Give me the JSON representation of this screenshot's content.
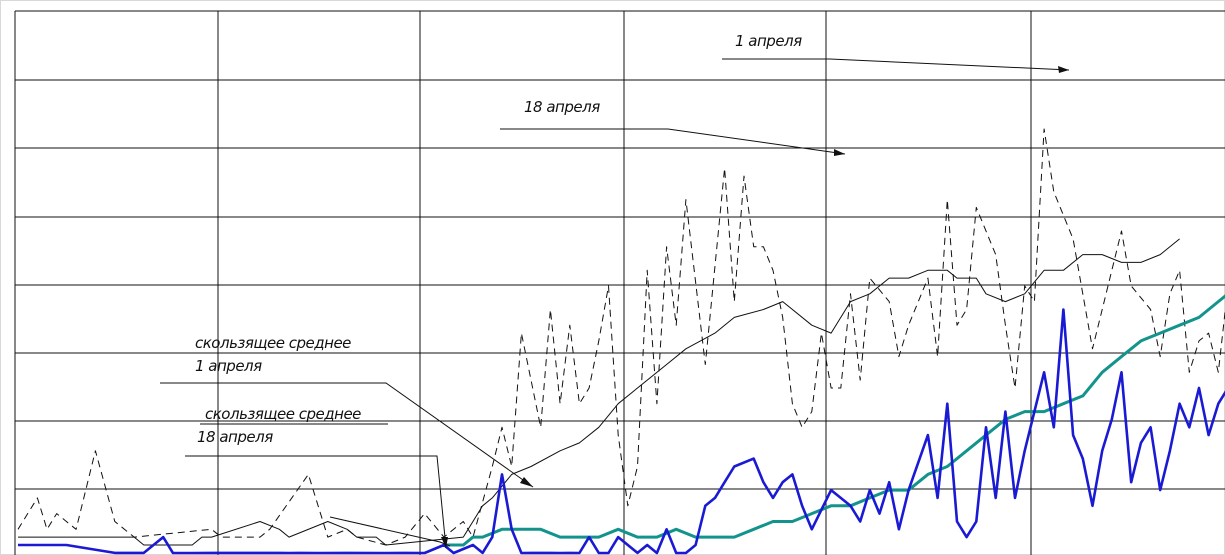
{
  "chart_data": {
    "type": "line",
    "grid": true,
    "x_divisions": 6,
    "y_divisions": 8,
    "xlim": [
      0,
      120
    ],
    "ylim": [
      0,
      80
    ],
    "colors": {
      "dashed": "#111111",
      "sma_black": "#111111",
      "blue": "#1a1ad4",
      "teal": "#12948c",
      "grid": "#111111"
    },
    "series": [
      {
        "id": "dashed",
        "style": "dashed",
        "points": [
          [
            0,
            2
          ],
          [
            2,
            6
          ],
          [
            3,
            2
          ],
          [
            4,
            4
          ],
          [
            5,
            3
          ],
          [
            6,
            2
          ],
          [
            8,
            12
          ],
          [
            10,
            3
          ],
          [
            12,
            1
          ],
          [
            20,
            2
          ],
          [
            21,
            1
          ],
          [
            25,
            1
          ],
          [
            26,
            2
          ],
          [
            30,
            9
          ],
          [
            32,
            1
          ],
          [
            34,
            2
          ],
          [
            35,
            1
          ],
          [
            38,
            0
          ],
          [
            40,
            1
          ],
          [
            42,
            4
          ],
          [
            44,
            1
          ],
          [
            46,
            3
          ],
          [
            47,
            1
          ],
          [
            49,
            10
          ],
          [
            50,
            15
          ],
          [
            51,
            10
          ],
          [
            52,
            27
          ],
          [
            54,
            15
          ],
          [
            55,
            30
          ],
          [
            56,
            18
          ],
          [
            57,
            28
          ],
          [
            58,
            18
          ],
          [
            59,
            20
          ],
          [
            60,
            26
          ],
          [
            61,
            33
          ],
          [
            62,
            14
          ],
          [
            63,
            5
          ],
          [
            64,
            10
          ],
          [
            65,
            35
          ],
          [
            66,
            18
          ],
          [
            67,
            38
          ],
          [
            68,
            28
          ],
          [
            69,
            44
          ],
          [
            71,
            23
          ],
          [
            73,
            48
          ],
          [
            74,
            31
          ],
          [
            75,
            47
          ],
          [
            76,
            38
          ],
          [
            77,
            38
          ],
          [
            78,
            35
          ],
          [
            79,
            29
          ],
          [
            80,
            18
          ],
          [
            81,
            15
          ],
          [
            82,
            17
          ],
          [
            83,
            27
          ],
          [
            84,
            20
          ],
          [
            85,
            20
          ],
          [
            86,
            32
          ],
          [
            87,
            21
          ],
          [
            88,
            34
          ],
          [
            90,
            31
          ],
          [
            91,
            24
          ],
          [
            92,
            28
          ],
          [
            94,
            34
          ],
          [
            95,
            24
          ],
          [
            96,
            44
          ],
          [
            97,
            28
          ],
          [
            98,
            30
          ],
          [
            99,
            43
          ],
          [
            101,
            37
          ],
          [
            102,
            28
          ],
          [
            103,
            20
          ],
          [
            104,
            33
          ],
          [
            105,
            31
          ],
          [
            106,
            53
          ],
          [
            107,
            45
          ],
          [
            109,
            39
          ],
          [
            111,
            25
          ],
          [
            112,
            30
          ],
          [
            114,
            40
          ],
          [
            115,
            33
          ],
          [
            117,
            30
          ],
          [
            118,
            24
          ],
          [
            119,
            32
          ],
          [
            120,
            35
          ],
          [
            121,
            22
          ],
          [
            122,
            26
          ],
          [
            123,
            27
          ],
          [
            124,
            22
          ],
          [
            125,
            33
          ]
        ]
      },
      {
        "id": "sma_black",
        "style": "solid-thin",
        "points": [
          [
            0,
            1
          ],
          [
            5,
            1
          ],
          [
            7,
            1
          ],
          [
            9,
            1
          ],
          [
            10,
            1
          ],
          [
            11,
            1
          ],
          [
            12,
            1
          ],
          [
            13,
            0
          ],
          [
            18,
            0
          ],
          [
            19,
            1
          ],
          [
            20,
            1
          ],
          [
            25,
            3
          ],
          [
            27,
            2
          ],
          [
            28,
            1
          ],
          [
            32,
            3
          ],
          [
            34,
            2
          ],
          [
            35,
            1
          ],
          [
            37,
            1
          ],
          [
            38,
            0
          ],
          [
            46,
            1
          ],
          [
            48,
            5
          ],
          [
            49,
            6
          ],
          [
            51,
            9
          ],
          [
            53,
            10
          ],
          [
            56,
            12
          ],
          [
            58,
            13
          ],
          [
            60,
            15
          ],
          [
            62,
            18
          ],
          [
            64,
            20
          ],
          [
            67,
            23
          ],
          [
            69,
            25
          ],
          [
            72,
            27
          ],
          [
            74,
            29
          ],
          [
            77,
            30
          ],
          [
            79,
            31
          ],
          [
            82,
            28
          ],
          [
            84,
            27
          ],
          [
            86,
            31
          ],
          [
            88,
            32
          ],
          [
            90,
            34
          ],
          [
            92,
            34
          ],
          [
            94,
            35
          ],
          [
            96,
            35
          ],
          [
            97,
            34
          ],
          [
            99,
            34
          ],
          [
            100,
            32
          ],
          [
            102,
            31
          ],
          [
            104,
            32
          ],
          [
            106,
            35
          ],
          [
            108,
            35
          ],
          [
            110,
            37
          ],
          [
            112,
            37
          ],
          [
            114,
            36
          ],
          [
            116,
            36
          ],
          [
            118,
            37
          ],
          [
            120,
            39
          ]
        ]
      },
      {
        "id": "blue",
        "style": "solid-thick",
        "points": [
          [
            0,
            0
          ],
          [
            1,
            0
          ],
          [
            5,
            0
          ],
          [
            10,
            -1
          ],
          [
            13,
            -1
          ],
          [
            15,
            1
          ],
          [
            16,
            -1
          ],
          [
            18,
            -2
          ],
          [
            20,
            -1
          ],
          [
            21,
            -1
          ],
          [
            25,
            -1
          ],
          [
            27,
            -1
          ],
          [
            28,
            -2
          ],
          [
            29,
            -1
          ],
          [
            31,
            -2
          ],
          [
            34,
            -1
          ],
          [
            38,
            -2
          ],
          [
            40,
            -1
          ],
          [
            42,
            -2
          ],
          [
            44,
            0
          ],
          [
            45,
            -2
          ],
          [
            47,
            0
          ],
          [
            48,
            -1
          ],
          [
            49,
            1
          ],
          [
            50,
            9
          ],
          [
            51,
            2
          ],
          [
            52,
            -3
          ],
          [
            53,
            -1
          ],
          [
            55,
            -1
          ],
          [
            56,
            -2
          ],
          [
            57,
            -1
          ],
          [
            58,
            -3
          ],
          [
            59,
            1
          ],
          [
            60,
            -2
          ],
          [
            61,
            -3
          ],
          [
            62,
            1
          ],
          [
            64,
            -1
          ],
          [
            65,
            0
          ],
          [
            66,
            -2
          ],
          [
            67,
            2
          ],
          [
            68,
            -2
          ],
          [
            69,
            -3
          ],
          [
            70,
            0
          ],
          [
            71,
            5
          ],
          [
            72,
            6
          ],
          [
            73,
            8
          ],
          [
            74,
            10
          ],
          [
            76,
            11
          ],
          [
            77,
            8
          ],
          [
            78,
            6
          ],
          [
            79,
            8
          ],
          [
            80,
            9
          ],
          [
            81,
            5
          ],
          [
            82,
            2
          ],
          [
            84,
            7
          ],
          [
            86,
            5
          ],
          [
            87,
            3
          ],
          [
            88,
            7
          ],
          [
            89,
            4
          ],
          [
            90,
            8
          ],
          [
            91,
            2
          ],
          [
            92,
            7
          ],
          [
            94,
            14
          ],
          [
            95,
            6
          ],
          [
            96,
            18
          ],
          [
            97,
            3
          ],
          [
            98,
            1
          ],
          [
            99,
            3
          ],
          [
            100,
            15
          ],
          [
            101,
            6
          ],
          [
            102,
            17
          ],
          [
            103,
            6
          ],
          [
            104,
            12
          ],
          [
            106,
            22
          ],
          [
            107,
            15
          ],
          [
            108,
            30
          ],
          [
            109,
            14
          ],
          [
            110,
            11
          ],
          [
            111,
            5
          ],
          [
            112,
            12
          ],
          [
            113,
            16
          ],
          [
            114,
            22
          ],
          [
            115,
            8
          ],
          [
            116,
            13
          ],
          [
            117,
            15
          ],
          [
            118,
            7
          ],
          [
            119,
            12
          ],
          [
            120,
            18
          ],
          [
            121,
            15
          ],
          [
            122,
            20
          ],
          [
            123,
            14
          ],
          [
            124,
            18
          ],
          [
            125,
            20
          ]
        ]
      },
      {
        "id": "teal",
        "style": "solid-thick",
        "points": [
          [
            44,
            0
          ],
          [
            46,
            0
          ],
          [
            47,
            1
          ],
          [
            48,
            1
          ],
          [
            50,
            2
          ],
          [
            52,
            2
          ],
          [
            54,
            2
          ],
          [
            56,
            1
          ],
          [
            58,
            1
          ],
          [
            60,
            1
          ],
          [
            62,
            2
          ],
          [
            64,
            1
          ],
          [
            66,
            1
          ],
          [
            68,
            2
          ],
          [
            70,
            1
          ],
          [
            72,
            1
          ],
          [
            74,
            1
          ],
          [
            76,
            2
          ],
          [
            78,
            3
          ],
          [
            80,
            3
          ],
          [
            82,
            4
          ],
          [
            84,
            5
          ],
          [
            86,
            5
          ],
          [
            88,
            6
          ],
          [
            90,
            7
          ],
          [
            92,
            7
          ],
          [
            94,
            9
          ],
          [
            96,
            10
          ],
          [
            98,
            12
          ],
          [
            100,
            14
          ],
          [
            102,
            16
          ],
          [
            104,
            17
          ],
          [
            106,
            17
          ],
          [
            108,
            18
          ],
          [
            110,
            19
          ],
          [
            112,
            22
          ],
          [
            114,
            24
          ],
          [
            116,
            26
          ],
          [
            118,
            27
          ],
          [
            120,
            28
          ],
          [
            122,
            29
          ],
          [
            124,
            31
          ],
          [
            125,
            32
          ]
        ]
      }
    ],
    "annotations": [
      {
        "id": "a1",
        "lines": [
          "1 апреля"
        ]
      },
      {
        "id": "a2",
        "lines": [
          "18 апреля"
        ]
      },
      {
        "id": "a3",
        "lines": [
          "скользящее среднее",
          "1 апреля"
        ]
      },
      {
        "id": "a4",
        "lines": [
          "скользящее среднее",
          "18 апреля"
        ]
      }
    ]
  }
}
